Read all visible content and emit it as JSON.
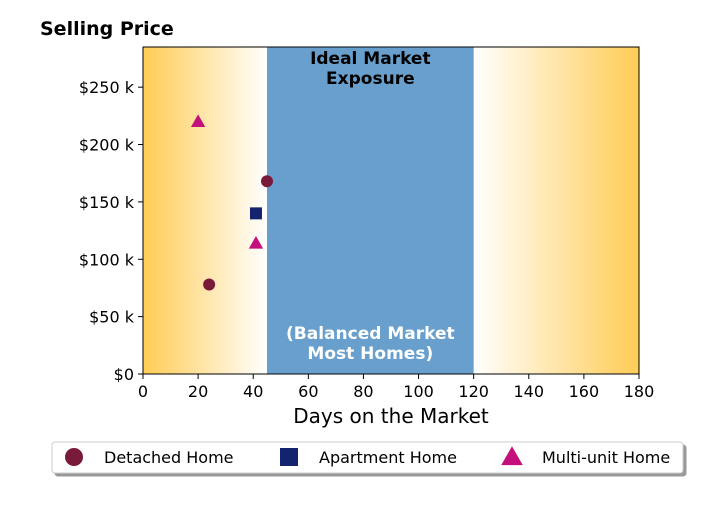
{
  "chart_data": {
    "type": "scatter",
    "title": "Selling Price",
    "xlabel": "Days on the Market",
    "ylabel": "",
    "xlim": [
      0,
      180
    ],
    "ylim": [
      0,
      285000
    ],
    "x_ticks": [
      0,
      20,
      40,
      60,
      80,
      100,
      120,
      140,
      160,
      180
    ],
    "y_ticks": [
      0,
      50000,
      100000,
      150000,
      200000,
      250000
    ],
    "y_tick_labels": [
      "$0",
      "$50 k",
      "$100 k",
      "$150 k",
      "$200 k",
      "$250 k"
    ],
    "grid": false,
    "legend_position": "bottom",
    "band": {
      "x_start": 45,
      "x_end": 120,
      "color": "#689fcc",
      "top_label_lines": [
        "Ideal Market",
        "Exposure"
      ],
      "bottom_label_lines": [
        "(Balanced Market",
        "Most Homes)"
      ]
    },
    "background_gradient": {
      "edge_color": "#ffcc55",
      "center_color": "#ffffff"
    },
    "series": [
      {
        "name": "Detached Home",
        "marker": "circle",
        "color": "#7a1a3a",
        "points": [
          {
            "x": 45,
            "y": 168000
          },
          {
            "x": 24,
            "y": 78000
          }
        ]
      },
      {
        "name": "Apartment Home",
        "marker": "square",
        "color": "#13236e",
        "points": [
          {
            "x": 41,
            "y": 140000
          }
        ]
      },
      {
        "name": "Multi-unit Home",
        "marker": "triangle",
        "color": "#c4107a",
        "points": [
          {
            "x": 20,
            "y": 220000
          },
          {
            "x": 41,
            "y": 114000
          }
        ]
      }
    ]
  }
}
